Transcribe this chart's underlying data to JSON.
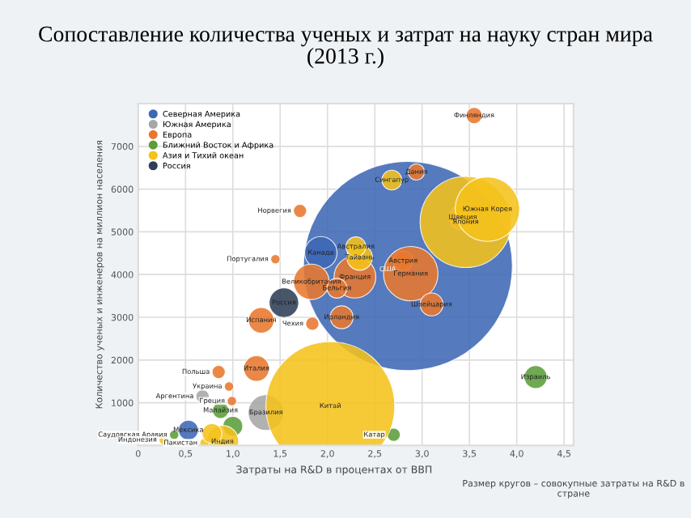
{
  "chart_data": {
    "type": "bubble",
    "title": "Сопоставление количества ученых и затрат на науку стран мира\n(2013 г.)",
    "xlabel": "Затраты на R&D в процентах от ВВП",
    "ylabel": "Количество ученых и инженеров на миллион населения",
    "xlim": [
      0,
      4.6
    ],
    "ylim": [
      0,
      8000
    ],
    "xticks": [
      0,
      {
        "value": 0.5,
        "label": "0,5"
      },
      {
        "value": 1,
        "label": "1,0"
      },
      {
        "value": 1.5,
        "label": "1,5"
      },
      {
        "value": 2,
        "label": "2,0"
      },
      {
        "value": 2.5,
        "label": "2,5"
      },
      {
        "value": 3,
        "label": "3,0"
      },
      {
        "value": 3.5,
        "label": "3,5"
      },
      {
        "value": 4,
        "label": "4,0"
      },
      {
        "value": 4.5,
        "label": "4,5"
      }
    ],
    "yticks": [
      1000,
      2000,
      3000,
      4000,
      5000,
      6000,
      7000
    ],
    "grid": true,
    "legend": "top left",
    "series": [
      {
        "name": "Северная Америка",
        "color": "#3d68b4",
        "x": [
          2.85,
          1.93,
          0.53
        ],
        "values": [
          4200,
          4510,
          360
        ],
        "sizes": [
          1,
          0.024,
          0.009
        ]
      },
      {
        "name": "Южная Америка",
        "color": "#a6a6a6",
        "x": [
          0.68,
          1.35
        ],
        "values": [
          1150,
          770
        ],
        "sizes": [
          0.004,
          0.029
        ]
      },
      {
        "name": "Европа",
        "color": "#e8772e",
        "x": [
          3.55,
          2.94,
          3.43,
          1.71,
          1.45,
          1.83,
          2.29,
          2.1,
          2.8,
          2.88,
          3.1,
          1.3,
          1.84,
          2.15,
          0.85,
          1.25,
          0.96,
          0.99
        ],
        "values": [
          7720,
          6400,
          5340,
          5490,
          4360,
          3830,
          3940,
          3680,
          4320,
          4020,
          3300,
          2930,
          2850,
          3000,
          1720,
          1800,
          1380,
          1040
        ],
        "sizes": [
          0.006,
          0.006,
          0.015,
          0.004,
          0.002,
          0.029,
          0.04,
          0.009,
          0.009,
          0.068,
          0.012,
          0.015,
          0.004,
          0.012,
          0.004,
          0.015,
          0.002,
          0.002
        ]
      },
      {
        "name": "Ближний Восток и Африка",
        "color": "#5b9e3a",
        "x": [
          4.2,
          2.7,
          0.38,
          1.0,
          0.87
        ],
        "values": [
          1600,
          250,
          250,
          450,
          820
        ],
        "sizes": [
          0.012,
          0.004,
          0.002,
          0.009,
          0.006
        ]
      },
      {
        "name": "Азия и Тихий океан",
        "color": "#f5c21b",
        "x": [
          3.46,
          3.69,
          2.68,
          2.34,
          2.03,
          0.89,
          0.27,
          0.7,
          2.3,
          0.78
        ],
        "values": [
          5230,
          5530,
          6210,
          4400,
          920,
          90,
          130,
          60,
          4650,
          280
        ],
        "sizes": [
          0.19,
          0.095,
          0.009,
          0.015,
          0.38,
          0.024,
          0.002,
          0.002,
          0.009,
          0.009
        ]
      },
      {
        "name": "Россия",
        "color": "#2e3f57",
        "x": [
          1.54
        ],
        "values": [
          3340
        ],
        "sizes": [
          0.02
        ]
      }
    ],
    "annotations": [
      {
        "text": "США",
        "x": 2.85,
        "y": 4200
      },
      {
        "text": "Канада",
        "x": 1.93,
        "y": 4510
      },
      {
        "text": "Мексика",
        "x": 0.53,
        "y": 360
      },
      {
        "text": "Аргентина",
        "x": 0.68,
        "y": 1150
      },
      {
        "text": "Бразилия",
        "x": 1.35,
        "y": 770
      },
      {
        "text": "Финляндия",
        "x": 3.55,
        "y": 7720
      },
      {
        "text": "Дания",
        "x": 2.94,
        "y": 6400
      },
      {
        "text": "Швеция",
        "x": 3.43,
        "y": 5340
      },
      {
        "text": "Норвегия",
        "x": 1.71,
        "y": 5490
      },
      {
        "text": "Португалия",
        "x": 1.45,
        "y": 4360
      },
      {
        "text": "Великобритания",
        "x": 1.83,
        "y": 3830
      },
      {
        "text": "Франция",
        "x": 2.29,
        "y": 3940
      },
      {
        "text": "Бельгия",
        "x": 2.1,
        "y": 3680
      },
      {
        "text": "Австрия",
        "x": 2.8,
        "y": 4320
      },
      {
        "text": "Германия",
        "x": 2.88,
        "y": 4020
      },
      {
        "text": "Швейцария",
        "x": 3.1,
        "y": 3300
      },
      {
        "text": "Испания",
        "x": 1.3,
        "y": 2930
      },
      {
        "text": "Чехия",
        "x": 1.84,
        "y": 2850
      },
      {
        "text": "Ирландия",
        "x": 2.15,
        "y": 3000
      },
      {
        "text": "Польша",
        "x": 0.85,
        "y": 1720
      },
      {
        "text": "Италия",
        "x": 1.25,
        "y": 1800
      },
      {
        "text": "Украина",
        "x": 0.96,
        "y": 1380
      },
      {
        "text": "Греция",
        "x": 0.99,
        "y": 1040
      },
      {
        "text": "Израиль",
        "x": 4.2,
        "y": 1600
      },
      {
        "text": "Катар",
        "x": 2.7,
        "y": 250
      },
      {
        "text": "Саудовская Аравия",
        "x": 0.38,
        "y": 250
      },
      {
        "text": "Малайзия",
        "x": 0.87,
        "y": 820
      },
      {
        "text": "Япония",
        "x": 3.46,
        "y": 5230
      },
      {
        "text": "Южная Корея",
        "x": 3.69,
        "y": 5530
      },
      {
        "text": "Сингапур",
        "x": 2.68,
        "y": 6210
      },
      {
        "text": "Тайвань",
        "x": 2.34,
        "y": 4400
      },
      {
        "text": "Китай",
        "x": 2.03,
        "y": 920
      },
      {
        "text": "Индия",
        "x": 0.89,
        "y": 90
      },
      {
        "text": "Индонезия",
        "x": 0.27,
        "y": 130
      },
      {
        "text": "Пакистан",
        "x": 0.7,
        "y": 60
      },
      {
        "text": "Австралия",
        "x": 2.3,
        "y": 4650
      },
      {
        "text": "Россия",
        "x": 1.54,
        "y": 3340
      },
      "Размер кругов – совокупные затраты на R&D в стране"
    ]
  }
}
